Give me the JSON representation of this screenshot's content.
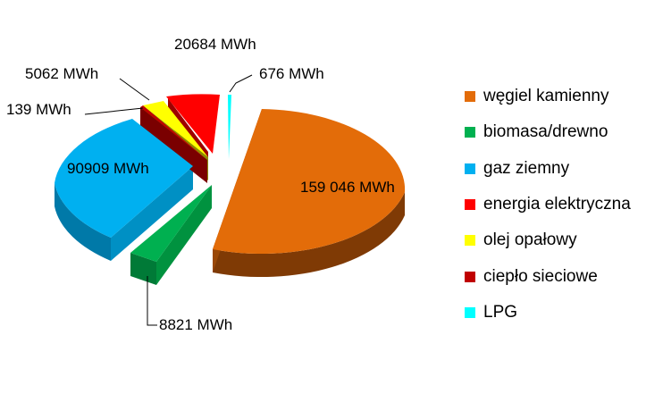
{
  "chart_data": {
    "type": "pie",
    "style": "3d-exploded",
    "title": "",
    "unit": "MWh",
    "legend_position": "right",
    "series": [
      {
        "name": "węgiel kamienny",
        "value": 159046,
        "label": "159 046 MWh",
        "color": "#E36C09"
      },
      {
        "name": "biomasa/drewno",
        "value": 8821,
        "label": "8821 MWh",
        "color": "#00B050"
      },
      {
        "name": "gaz ziemny",
        "value": 90909,
        "label": "90909 MWh",
        "color": "#00B0F0"
      },
      {
        "name": "energia elektryczna",
        "value": 20684,
        "label": "20684 MWh",
        "color": "#FF0000"
      },
      {
        "name": "olej opałowy",
        "value": 5062,
        "label": "5062 MWh",
        "color": "#FFFF00"
      },
      {
        "name": "ciepło sieciowe",
        "value": 139,
        "label": "139 MWh",
        "color": "#C00000"
      },
      {
        "name": "LPG",
        "value": 676,
        "label": "676 MWh",
        "color": "#00FFFF"
      }
    ]
  }
}
